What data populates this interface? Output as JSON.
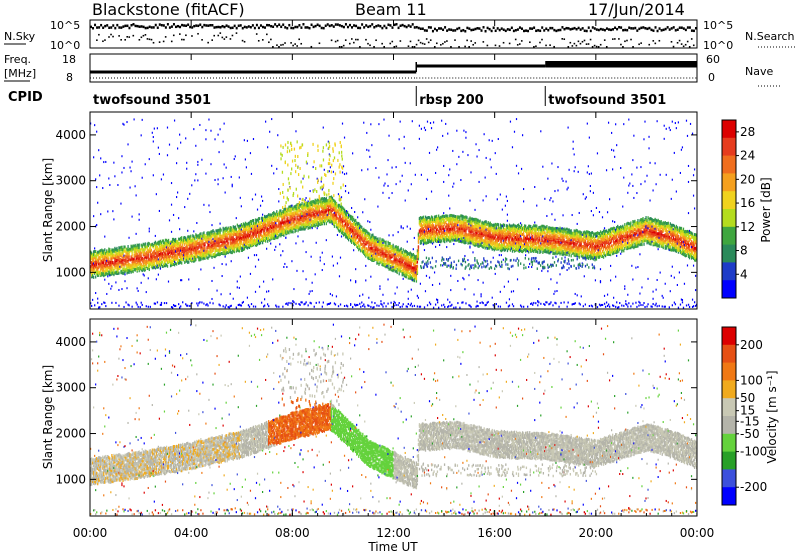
{
  "header": {
    "radar": "Blackstone (fitACF)",
    "beam": "Beam 11",
    "date": "17/Jun/2014"
  },
  "status_panels": {
    "nsky_label": "N.Sky",
    "nsky_ticks": [
      "10^5",
      "10^0"
    ],
    "nsearch_label": "N.Search",
    "nsearch_ticks": [
      "10^5",
      "10^0"
    ],
    "freq_label_line1": "Freq.",
    "freq_label_line2": "[MHz]",
    "freq_ticks": [
      "18",
      "8"
    ],
    "nave_label": "Nave",
    "nave_ticks": [
      "60",
      "0"
    ],
    "cpid_label": "CPID",
    "cpid_segments": [
      {
        "name": "twofsound 3501",
        "start_hour": 0,
        "end_hour": 12.9
      },
      {
        "name": "rbsp 200",
        "start_hour": 12.9,
        "end_hour": 18.0
      },
      {
        "name": "twofsound 3501",
        "start_hour": 18.0,
        "end_hour": 24
      }
    ]
  },
  "colors": {
    "power_scale": [
      "#0000ff",
      "#1e3cc8",
      "#2a8a5a",
      "#3fa63f",
      "#b4dc1e",
      "#f0d21e",
      "#f5a01e",
      "#f06e1e",
      "#e63c1e",
      "#dc0000"
    ],
    "velocity_scale": [
      "#0000ff",
      "#3c50dc",
      "#28a028",
      "#64d23c",
      "#b4b4aa",
      "#c8c8b4",
      "#f0aa1e",
      "#f07814",
      "#e65014",
      "#dc0000"
    ]
  },
  "chart_data": [
    {
      "type": "heatmap",
      "panel": "power",
      "ylabel": "Slant Range [km]",
      "ylim": [
        200,
        4500
      ],
      "xlim_hours": [
        0,
        24
      ],
      "yticks": [
        1000,
        2000,
        3000,
        4000
      ],
      "colorbar_label": "Power [dB]",
      "colorbar_ticks": [
        4,
        8,
        12,
        16,
        20,
        24,
        28
      ],
      "colorbar_range": [
        0,
        30
      ],
      "main_echo_band": {
        "hours": [
          0,
          2,
          4,
          6,
          8,
          9.5,
          11,
          12.9,
          13.0,
          14.5,
          16,
          18,
          20,
          22,
          23,
          24
        ],
        "range_km": [
          1200,
          1350,
          1550,
          1800,
          2200,
          2400,
          1600,
          1100,
          1950,
          2000,
          1800,
          1750,
          1600,
          1950,
          1800,
          1550
        ]
      }
    },
    {
      "type": "heatmap",
      "panel": "velocity",
      "ylabel": "Slant Range [km]",
      "ylim": [
        200,
        4500
      ],
      "xlim_hours": [
        0,
        24
      ],
      "yticks": [
        1000,
        2000,
        3000,
        4000
      ],
      "colorbar_label": "Velocity [m s⁻¹]",
      "colorbar_ticks": [
        200,
        100,
        50,
        15,
        -15,
        -50,
        -100,
        -200
      ],
      "colorbar_range": [
        -250,
        250
      ]
    }
  ],
  "xaxis": {
    "ticks": [
      "00:00",
      "04:00",
      "08:00",
      "12:00",
      "16:00",
      "20:00",
      "00:00"
    ],
    "label": "Time UT"
  }
}
